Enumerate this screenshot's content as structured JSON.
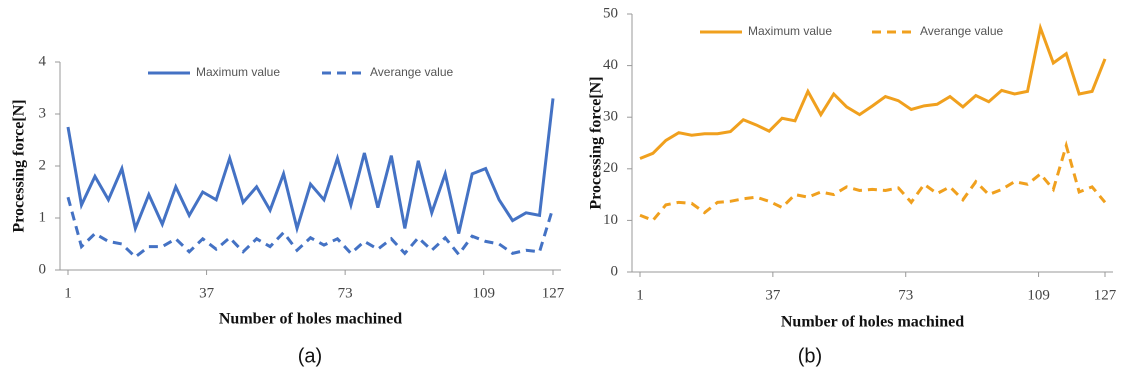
{
  "chart_data": [
    {
      "type": "line",
      "caption": "(a)",
      "xlabel": "Number of holes machined",
      "ylabel": "Processing force[N]",
      "x": [
        1,
        4.5,
        8,
        11.5,
        15,
        18.5,
        22,
        25.5,
        29,
        32.5,
        36,
        39.5,
        43,
        46.5,
        50,
        53.5,
        57,
        60.5,
        64,
        67.5,
        71,
        74.5,
        78,
        81.5,
        85,
        88.5,
        92,
        95.5,
        99,
        102.5,
        106,
        109.5,
        113,
        116.5,
        120,
        123.5,
        127
      ],
      "xlim": [
        1,
        127
      ],
      "xticks": [
        1,
        37,
        73,
        109,
        127
      ],
      "ylim": [
        0,
        4
      ],
      "yticks": [
        0,
        1,
        2,
        3,
        4
      ],
      "legend": "top",
      "series": [
        {
          "name": "Maximum value",
          "color": "#4472c4",
          "linestyle": "solid",
          "values": [
            2.75,
            1.25,
            1.8,
            1.35,
            1.95,
            0.8,
            1.45,
            0.88,
            1.6,
            1.05,
            1.5,
            1.35,
            2.15,
            1.3,
            1.6,
            1.15,
            1.85,
            0.8,
            1.65,
            1.35,
            2.15,
            1.25,
            2.25,
            1.2,
            2.2,
            0.8,
            2.1,
            1.1,
            1.85,
            0.7,
            1.85,
            1.95,
            1.35,
            0.95,
            1.1,
            1.05,
            3.3
          ]
        },
        {
          "name": "Averange value",
          "color": "#4472c4",
          "linestyle": "dashed",
          "values": [
            1.4,
            0.45,
            0.7,
            0.55,
            0.5,
            0.25,
            0.45,
            0.45,
            0.6,
            0.35,
            0.6,
            0.4,
            0.62,
            0.35,
            0.6,
            0.45,
            0.72,
            0.38,
            0.62,
            0.48,
            0.6,
            0.32,
            0.55,
            0.4,
            0.6,
            0.32,
            0.62,
            0.38,
            0.62,
            0.3,
            0.65,
            0.55,
            0.5,
            0.32,
            0.38,
            0.35,
            1.2
          ]
        }
      ]
    },
    {
      "type": "line",
      "caption": "(b)",
      "xlabel": "Number of holes machined",
      "ylabel": "Processing force[N]",
      "x": [
        1,
        4.5,
        8,
        11.5,
        15,
        18.5,
        22,
        25.5,
        29,
        32.5,
        36,
        39.5,
        43,
        46.5,
        50,
        53.5,
        57,
        60.5,
        64,
        67.5,
        71,
        74.5,
        78,
        81.5,
        85,
        88.5,
        92,
        95.5,
        99,
        102.5,
        106,
        109.5,
        113,
        116.5,
        120,
        123.5,
        127
      ],
      "xlim": [
        1,
        127
      ],
      "xticks": [
        1,
        37,
        73,
        109,
        127
      ],
      "ylim": [
        0,
        50
      ],
      "yticks": [
        0,
        10,
        20,
        30,
        40,
        50
      ],
      "legend": "top",
      "series": [
        {
          "name": "Maximum value",
          "color": "#f0a01e",
          "linestyle": "solid",
          "values": [
            22,
            23,
            25.5,
            27,
            26.5,
            26.8,
            26.8,
            27.2,
            29.5,
            28.5,
            27.3,
            29.8,
            29.3,
            35,
            30.5,
            34.5,
            32,
            30.5,
            32.2,
            34,
            33.2,
            31.5,
            32.2,
            32.5,
            34,
            32,
            34.2,
            33,
            35.2,
            34.5,
            35,
            47.3,
            40.5,
            42.3,
            34.5,
            35,
            41.3
          ]
        },
        {
          "name": "Averange value",
          "color": "#f0a01e",
          "linestyle": "dashed",
          "values": [
            11,
            10,
            13,
            13.5,
            13.3,
            11.5,
            13.5,
            13.7,
            14.2,
            14.5,
            13.7,
            12.5,
            15,
            14.5,
            15.5,
            15,
            16.5,
            15.8,
            16,
            15.8,
            16.3,
            13.5,
            17,
            15.2,
            16.5,
            14,
            17.5,
            15,
            16,
            17.5,
            17,
            19,
            16,
            24.5,
            15.5,
            16.5,
            13.5
          ]
        }
      ]
    }
  ]
}
